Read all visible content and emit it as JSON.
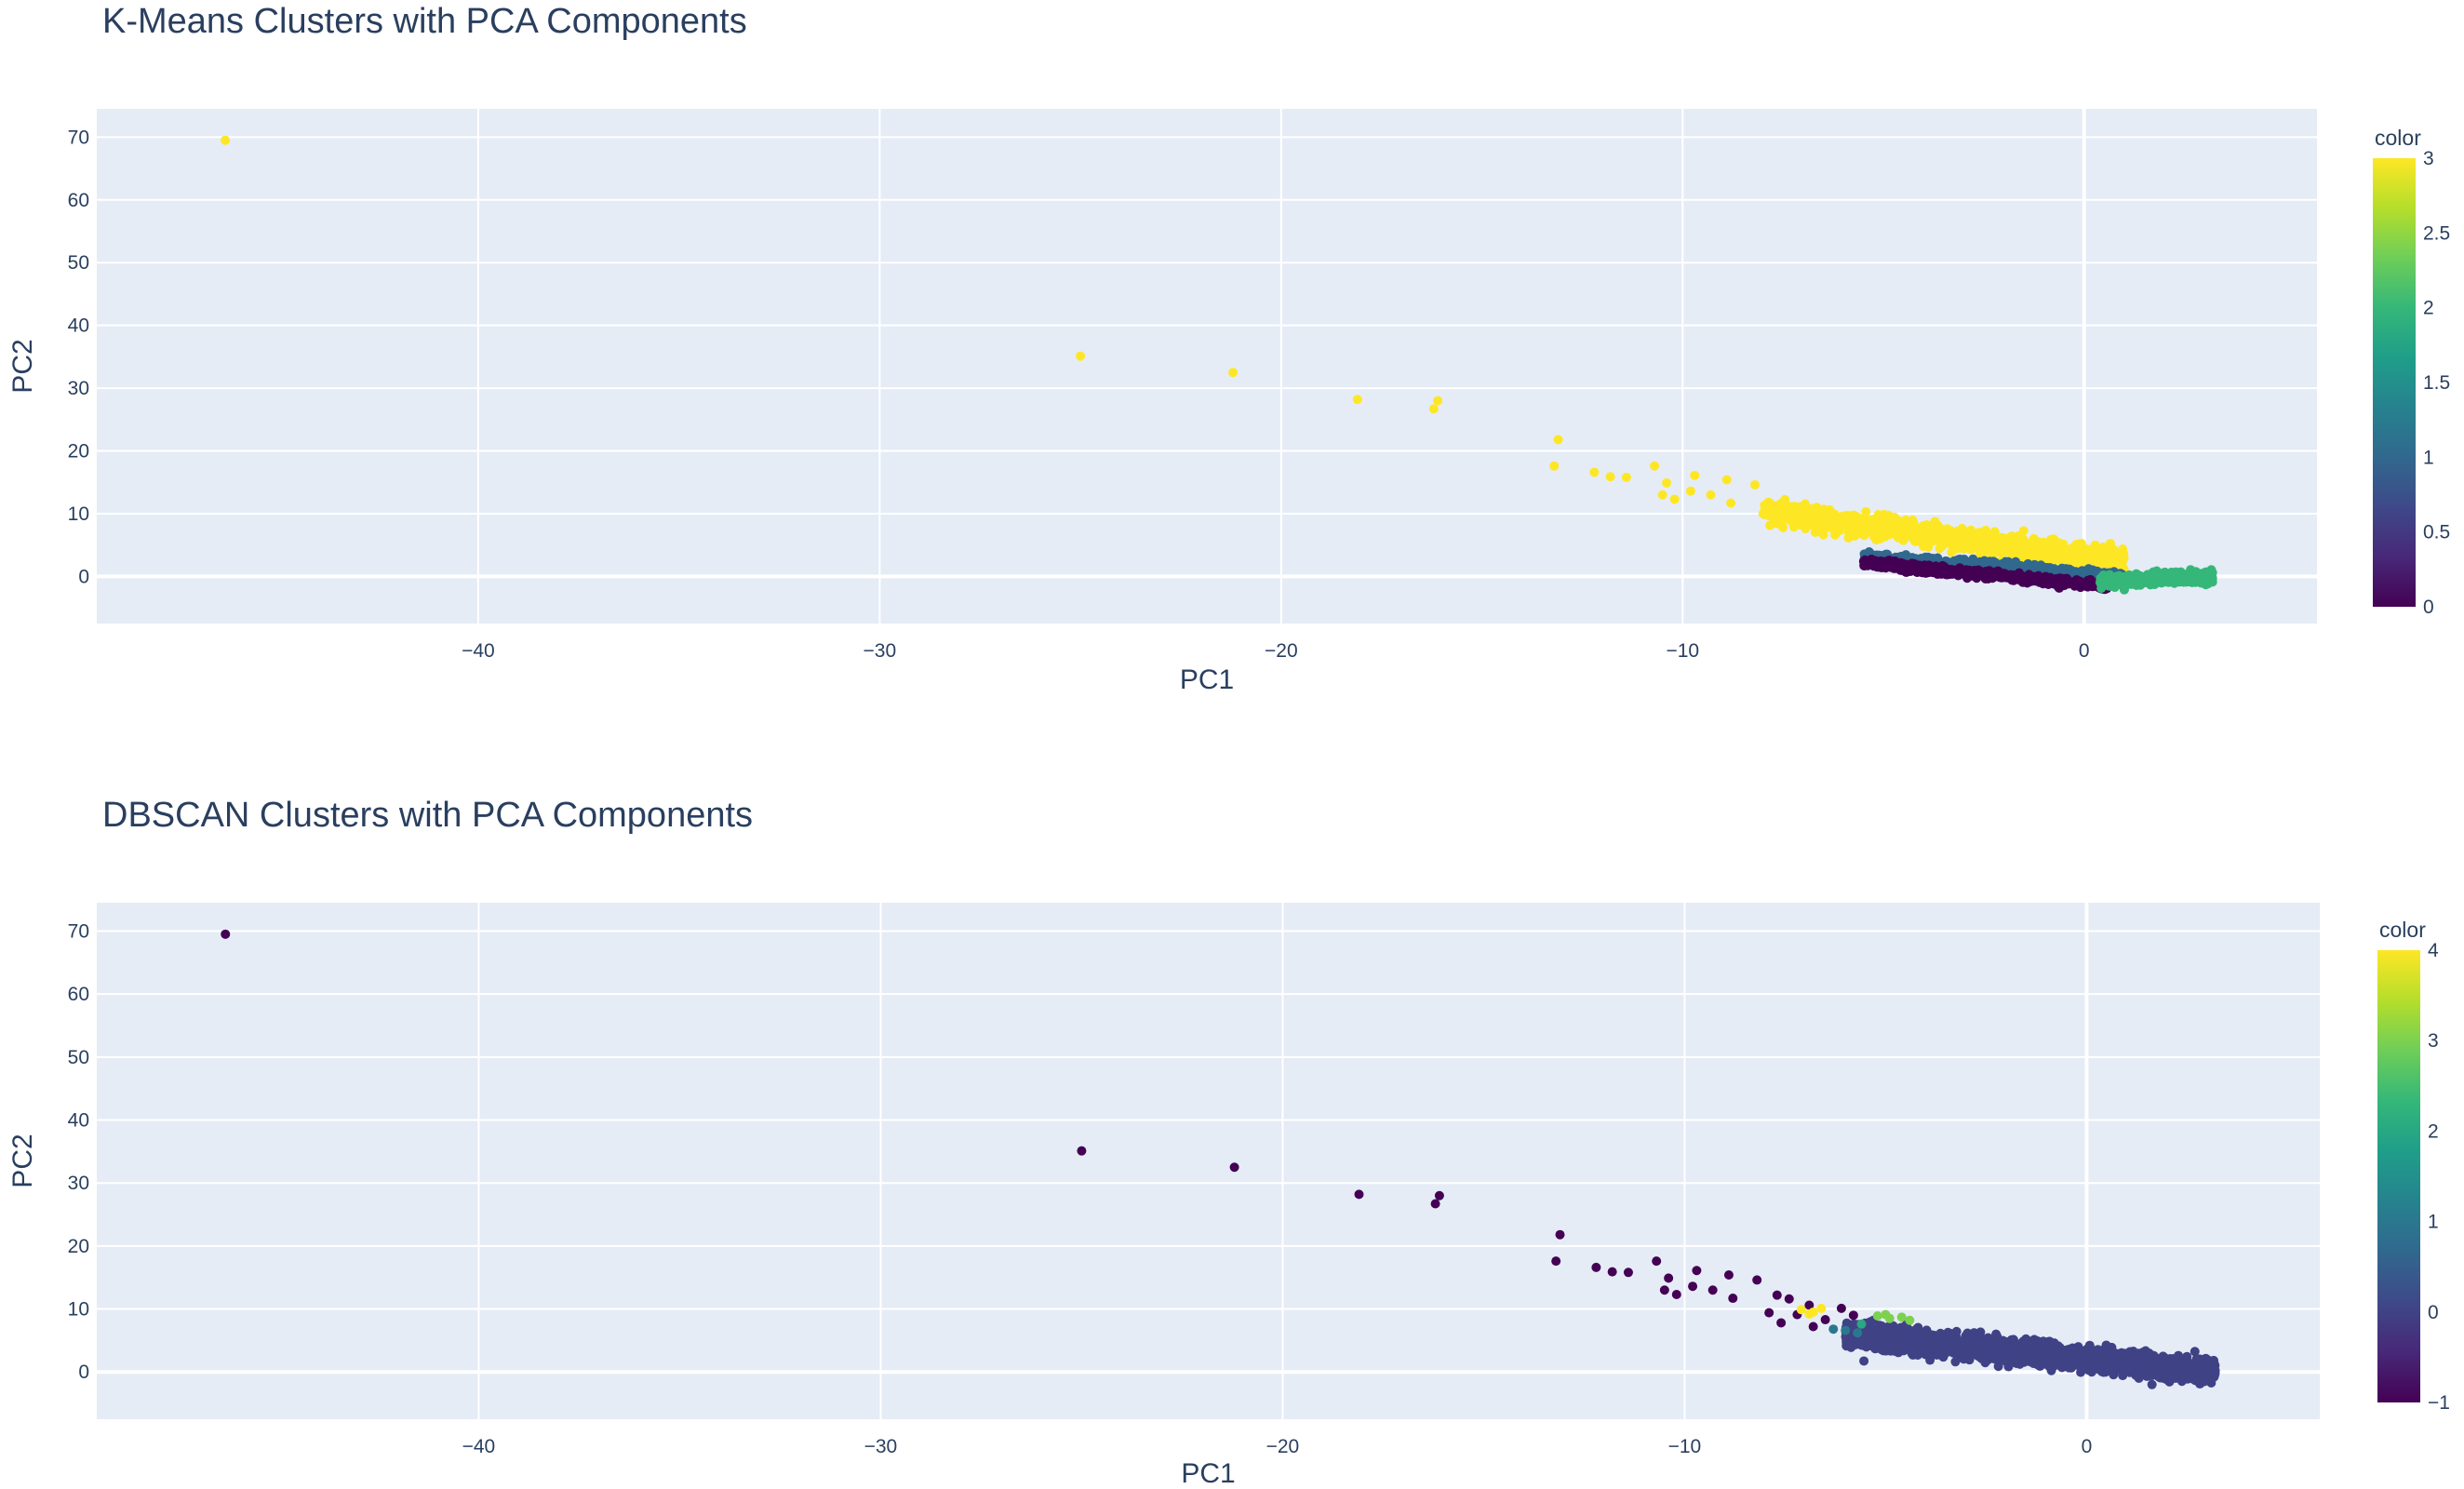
{
  "chart_data": [
    {
      "type": "scatter",
      "title": "K-Means Clusters with PCA Components",
      "xlabel": "PC1",
      "ylabel": "PC2",
      "xlim": [
        -49.5,
        5.8
      ],
      "ylim": [
        -7.5,
        74.5
      ],
      "xticks": [
        -40,
        -30,
        -20,
        -10,
        0
      ],
      "yticks": [
        0,
        10,
        20,
        30,
        40,
        50,
        60,
        70
      ],
      "grid": true,
      "colorscale": "Viridis",
      "colorbar": {
        "title": "color",
        "min": 0,
        "max": 3,
        "ticks": [
          0,
          0.5,
          1,
          1.5,
          2,
          2.5,
          3
        ]
      },
      "outlier_points": [
        {
          "x": -46.3,
          "y": 69.5,
          "color": 3
        },
        {
          "x": -25.0,
          "y": 35.1,
          "color": 3
        },
        {
          "x": -21.2,
          "y": 32.5,
          "color": 3
        },
        {
          "x": -18.1,
          "y": 28.2,
          "color": 3
        },
        {
          "x": -16.2,
          "y": 26.7,
          "color": 3
        },
        {
          "x": -16.1,
          "y": 28.0,
          "color": 3
        },
        {
          "x": -13.1,
          "y": 21.8,
          "color": 3
        },
        {
          "x": -13.2,
          "y": 17.6,
          "color": 3
        },
        {
          "x": -12.2,
          "y": 16.6,
          "color": 3
        },
        {
          "x": -11.8,
          "y": 15.9,
          "color": 3
        },
        {
          "x": -11.4,
          "y": 15.8,
          "color": 3
        },
        {
          "x": -10.7,
          "y": 17.6,
          "color": 3
        },
        {
          "x": -10.4,
          "y": 14.9,
          "color": 3
        },
        {
          "x": -10.5,
          "y": 13.0,
          "color": 3
        },
        {
          "x": -10.2,
          "y": 12.3,
          "color": 3
        },
        {
          "x": -9.8,
          "y": 13.6,
          "color": 3
        },
        {
          "x": -9.7,
          "y": 16.1,
          "color": 3
        },
        {
          "x": -9.3,
          "y": 13.0,
          "color": 3
        },
        {
          "x": -8.9,
          "y": 15.4,
          "color": 3
        },
        {
          "x": -8.8,
          "y": 11.7,
          "color": 3
        },
        {
          "x": -8.2,
          "y": 14.6,
          "color": 3
        }
      ],
      "dense_clusters": [
        {
          "label": 3,
          "x_range": [
            -8.0,
            1.0
          ],
          "y_center_at_xmin": 10.5,
          "y_center_at_xmax": 2.2,
          "spread": 2.2,
          "count": 900
        },
        {
          "label": 1,
          "x_range": [
            -5.5,
            1.0
          ],
          "y_center_at_xmin": 3.2,
          "y_center_at_xmax": 0.0,
          "spread": 0.9,
          "count": 380
        },
        {
          "label": 0,
          "x_range": [
            -5.5,
            0.6
          ],
          "y_center_at_xmin": 2.2,
          "y_center_at_xmax": -1.6,
          "spread": 0.7,
          "count": 650
        },
        {
          "label": 2,
          "x_range": [
            0.4,
            3.2
          ],
          "y_center_at_xmin": -0.8,
          "y_center_at_xmax": 0.0,
          "spread": 0.9,
          "count": 650
        }
      ]
    },
    {
      "type": "scatter",
      "title": "DBSCAN Clusters with PCA Components",
      "xlabel": "PC1",
      "ylabel": "PC2",
      "xlim": [
        -49.5,
        5.8
      ],
      "ylim": [
        -7.5,
        74.5
      ],
      "xticks": [
        -40,
        -30,
        -20,
        -10,
        0
      ],
      "yticks": [
        0,
        10,
        20,
        30,
        40,
        50,
        60,
        70
      ],
      "grid": true,
      "colorscale": "Viridis",
      "colorbar": {
        "title": "color",
        "min": -1,
        "max": 4,
        "ticks": [
          -1,
          0,
          1,
          2,
          3,
          4
        ]
      },
      "outlier_points": [
        {
          "x": -46.3,
          "y": 69.5,
          "color": -1
        },
        {
          "x": -25.0,
          "y": 35.1,
          "color": -1
        },
        {
          "x": -21.2,
          "y": 32.5,
          "color": -1
        },
        {
          "x": -18.1,
          "y": 28.2,
          "color": -1
        },
        {
          "x": -16.2,
          "y": 26.7,
          "color": -1
        },
        {
          "x": -16.1,
          "y": 28.0,
          "color": -1
        },
        {
          "x": -13.1,
          "y": 21.8,
          "color": -1
        },
        {
          "x": -13.2,
          "y": 17.6,
          "color": -1
        },
        {
          "x": -12.2,
          "y": 16.6,
          "color": -1
        },
        {
          "x": -11.8,
          "y": 15.9,
          "color": -1
        },
        {
          "x": -11.4,
          "y": 15.8,
          "color": -1
        },
        {
          "x": -10.7,
          "y": 17.6,
          "color": -1
        },
        {
          "x": -10.4,
          "y": 14.9,
          "color": -1
        },
        {
          "x": -10.5,
          "y": 13.0,
          "color": -1
        },
        {
          "x": -10.2,
          "y": 12.3,
          "color": -1
        },
        {
          "x": -9.8,
          "y": 13.6,
          "color": -1
        },
        {
          "x": -9.7,
          "y": 16.1,
          "color": -1
        },
        {
          "x": -9.3,
          "y": 13.0,
          "color": -1
        },
        {
          "x": -8.9,
          "y": 15.4,
          "color": -1
        },
        {
          "x": -8.8,
          "y": 11.7,
          "color": -1
        },
        {
          "x": -8.2,
          "y": 14.6,
          "color": -1
        },
        {
          "x": -7.7,
          "y": 12.2,
          "color": -1
        },
        {
          "x": -7.4,
          "y": 11.6,
          "color": -1
        },
        {
          "x": -7.9,
          "y": 9.4,
          "color": -1
        },
        {
          "x": -7.6,
          "y": 7.8,
          "color": -1
        },
        {
          "x": -7.2,
          "y": 9.1,
          "color": -1
        },
        {
          "x": -6.9,
          "y": 10.6,
          "color": -1
        },
        {
          "x": -6.5,
          "y": 8.3,
          "color": -1
        },
        {
          "x": -6.1,
          "y": 10.1,
          "color": -1
        },
        {
          "x": -5.8,
          "y": 9.0,
          "color": -1
        },
        {
          "x": -6.8,
          "y": 7.2,
          "color": -1
        },
        {
          "x": -7.1,
          "y": 9.9,
          "color": 4
        },
        {
          "x": -6.8,
          "y": 9.5,
          "color": 4
        },
        {
          "x": -6.6,
          "y": 10.1,
          "color": 4
        },
        {
          "x": -6.9,
          "y": 9.2,
          "color": 4
        },
        {
          "x": -5.2,
          "y": 8.9,
          "color": 3
        },
        {
          "x": -4.9,
          "y": 8.5,
          "color": 3
        },
        {
          "x": -5.0,
          "y": 9.1,
          "color": 3
        },
        {
          "x": -4.6,
          "y": 8.7,
          "color": 3
        },
        {
          "x": -4.4,
          "y": 8.2,
          "color": 3
        },
        {
          "x": -5.6,
          "y": 7.6,
          "color": 2
        },
        {
          "x": -6.0,
          "y": 6.6,
          "color": 1
        },
        {
          "x": -5.7,
          "y": 6.2,
          "color": 1
        },
        {
          "x": -6.3,
          "y": 6.8,
          "color": 1
        }
      ],
      "dense_clusters": [
        {
          "label": 0,
          "x_range": [
            -6.0,
            3.2
          ],
          "y_center_at_xmin": 6.0,
          "y_center_at_xmax": 0.0,
          "spread": 2.0,
          "count": 2400
        }
      ]
    }
  ]
}
